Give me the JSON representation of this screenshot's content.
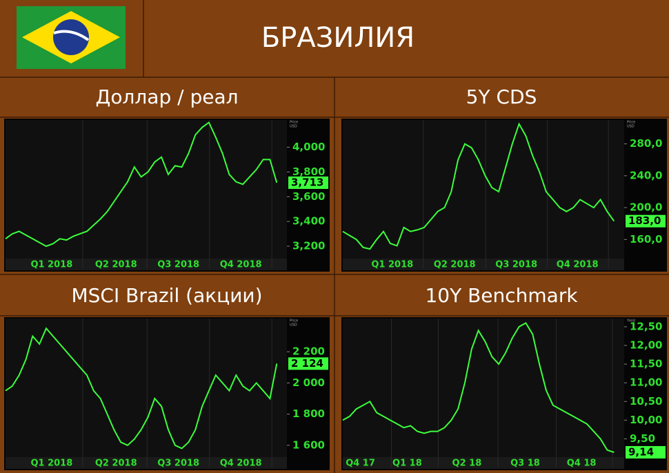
{
  "header": {
    "title": "БРАЗИЛИЯ"
  },
  "chart_data": [
    {
      "type": "line",
      "title": "Доллар / реал",
      "y_label": [
        "Price",
        "USD"
      ],
      "color": "#3cff3c",
      "values": [
        3260,
        3300,
        3320,
        3290,
        3260,
        3230,
        3200,
        3220,
        3260,
        3250,
        3280,
        3300,
        3320,
        3370,
        3420,
        3480,
        3560,
        3640,
        3720,
        3840,
        3760,
        3800,
        3880,
        3920,
        3780,
        3850,
        3840,
        3950,
        4100,
        4160,
        4200,
        4080,
        3950,
        3780,
        3720,
        3700,
        3760,
        3820,
        3900,
        3900,
        3713
      ],
      "value_labels": [
        null,
        null,
        null,
        null,
        null,
        null,
        null,
        null,
        null,
        null,
        null,
        null,
        null,
        null,
        null,
        null,
        null,
        null,
        null,
        null,
        null,
        null,
        null,
        null,
        null,
        null,
        null,
        null,
        null,
        null,
        null,
        null,
        null,
        null,
        null,
        null,
        null,
        null,
        null,
        null,
        "3,713"
      ],
      "xlim": [
        0,
        41.5
      ],
      "ylim": [
        3100,
        4220
      ],
      "xticks": [
        {
          "value": 6.8,
          "label": "Q1 2018"
        },
        {
          "value": 16.3,
          "label": "Q2 2018"
        },
        {
          "value": 25.5,
          "label": "Q3 2018"
        },
        {
          "value": 34.7,
          "label": "Q4 2018"
        }
      ],
      "yticks": [
        {
          "value": 3200,
          "label": "3,200"
        },
        {
          "value": 3400,
          "label": "3,400"
        },
        {
          "value": 3600,
          "label": "3,600"
        },
        {
          "value": 3800,
          "label": "3,800"
        },
        {
          "value": 4000,
          "label": "4,000"
        }
      ]
    },
    {
      "type": "line",
      "title": "5Y CDS",
      "y_label": [
        "Price",
        "USD"
      ],
      "color": "#3cff3c",
      "values": [
        170,
        165,
        160,
        150,
        148,
        160,
        170,
        155,
        152,
        175,
        170,
        172,
        175,
        185,
        195,
        200,
        220,
        260,
        280,
        275,
        260,
        240,
        225,
        220,
        250,
        280,
        305,
        290,
        265,
        245,
        220,
        210,
        200,
        195,
        200,
        210,
        205,
        200,
        210,
        195,
        183
      ],
      "value_labels": [
        null,
        null,
        null,
        null,
        null,
        null,
        null,
        null,
        null,
        null,
        null,
        null,
        null,
        null,
        null,
        null,
        null,
        null,
        null,
        null,
        null,
        null,
        null,
        null,
        null,
        null,
        null,
        null,
        null,
        null,
        null,
        null,
        null,
        null,
        null,
        null,
        null,
        null,
        null,
        null,
        "183,0"
      ],
      "xlim": [
        0,
        41.5
      ],
      "ylim": [
        136,
        310
      ],
      "xticks": [
        {
          "value": 7.3,
          "label": "Q1 2018"
        },
        {
          "value": 16.5,
          "label": "Q2 2018"
        },
        {
          "value": 25.6,
          "label": "Q3 2018"
        },
        {
          "value": 34.6,
          "label": "Q4 2018"
        }
      ],
      "yticks": [
        {
          "value": 160,
          "label": "160,0"
        },
        {
          "value": 200,
          "label": "200,0"
        },
        {
          "value": 240,
          "label": "240,0"
        },
        {
          "value": 280,
          "label": "280,0"
        }
      ]
    },
    {
      "type": "line",
      "title": "MSCI Brazil (акции)",
      "y_label": [
        "Price",
        "USD"
      ],
      "color": "#3cff3c",
      "values": [
        1950,
        1980,
        2050,
        2150,
        2300,
        2250,
        2350,
        2300,
        2250,
        2200,
        2150,
        2100,
        2050,
        1950,
        1900,
        1800,
        1700,
        1620,
        1600,
        1640,
        1700,
        1780,
        1900,
        1850,
        1700,
        1600,
        1580,
        1620,
        1700,
        1850,
        1950,
        2050,
        2000,
        1950,
        2050,
        1980,
        1950,
        2000,
        1950,
        1900,
        2124
      ],
      "value_labels": [
        null,
        null,
        null,
        null,
        null,
        null,
        null,
        null,
        null,
        null,
        null,
        null,
        null,
        null,
        null,
        null,
        null,
        null,
        null,
        null,
        null,
        null,
        null,
        null,
        null,
        null,
        null,
        null,
        null,
        null,
        null,
        null,
        null,
        null,
        null,
        null,
        null,
        null,
        null,
        null,
        "2 124"
      ],
      "xlim": [
        0,
        41.5
      ],
      "ylim": [
        1524,
        2413
      ],
      "xticks": [
        {
          "value": 6.8,
          "label": "Q1 2018"
        },
        {
          "value": 16.3,
          "label": "Q2 2018"
        },
        {
          "value": 25.5,
          "label": "Q3 2018"
        },
        {
          "value": 34.7,
          "label": "Q4 2018"
        }
      ],
      "yticks": [
        {
          "value": 1600,
          "label": "1 600"
        },
        {
          "value": 1800,
          "label": "1 800"
        },
        {
          "value": 2000,
          "label": "2 000"
        },
        {
          "value": 2200,
          "label": "2 200"
        }
      ]
    },
    {
      "type": "line",
      "title": "10Y Benchmark",
      "y_label": [
        "Yield"
      ],
      "color": "#3cff3c",
      "values": [
        10.0,
        10.1,
        10.3,
        10.4,
        10.5,
        10.2,
        10.1,
        10.0,
        9.9,
        9.8,
        9.85,
        9.7,
        9.65,
        9.7,
        9.7,
        9.8,
        10.0,
        10.3,
        11.0,
        11.9,
        12.4,
        12.1,
        11.7,
        11.5,
        11.8,
        12.2,
        12.5,
        12.6,
        12.3,
        11.5,
        10.8,
        10.4,
        10.3,
        10.2,
        10.1,
        10.0,
        9.9,
        9.7,
        9.5,
        9.2,
        9.14
      ],
      "value_labels": [
        null,
        null,
        null,
        null,
        null,
        null,
        null,
        null,
        null,
        null,
        null,
        null,
        null,
        null,
        null,
        null,
        null,
        null,
        null,
        null,
        null,
        null,
        null,
        null,
        null,
        null,
        null,
        null,
        null,
        null,
        null,
        null,
        null,
        null,
        null,
        null,
        null,
        null,
        null,
        null,
        "9,14"
      ],
      "xlim": [
        0,
        41.5
      ],
      "ylim": [
        9.01,
        12.72
      ],
      "xticks": [
        {
          "value": 2.6,
          "label": "Q4 17"
        },
        {
          "value": 9.5,
          "label": "Q1 18"
        },
        {
          "value": 18.3,
          "label": "Q2 18"
        },
        {
          "value": 26.9,
          "label": "Q3 18"
        },
        {
          "value": 35.2,
          "label": "Q4 18"
        }
      ],
      "yticks": [
        {
          "value": 9.5,
          "label": "9,50"
        },
        {
          "value": 10,
          "label": "10,00"
        },
        {
          "value": 10.5,
          "label": "10,50"
        },
        {
          "value": 11,
          "label": "11,00"
        },
        {
          "value": 11.5,
          "label": "11,50"
        },
        {
          "value": 12,
          "label": "12,00"
        },
        {
          "value": 12.5,
          "label": "12,50"
        }
      ]
    }
  ]
}
